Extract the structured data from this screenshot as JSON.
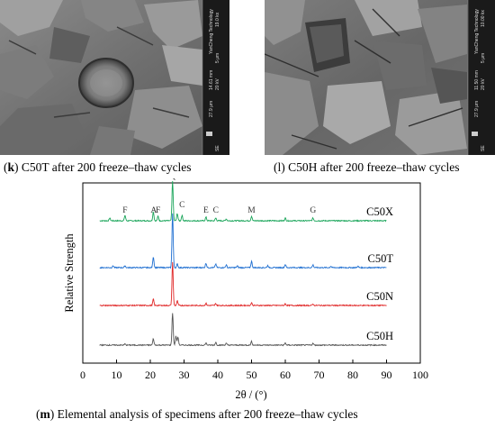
{
  "panels": {
    "k": {
      "letter": "k",
      "caption_rest": " C50T after 200 freeze–thaw cycles",
      "sem_info": [
        "19.0 kx",
        "YanCheng Technology",
        "5 μm",
        "14.61 mm",
        "20 kV",
        "27.9 μm",
        "SE"
      ]
    },
    "l": {
      "letter": "l",
      "caption_rest": " C50H after 200 freeze–thaw cycles",
      "sem_info": [
        "10.00 kx",
        "YanCheng Technology",
        "5 μm",
        "11.50 mm",
        "20 kV",
        "27.9 μm",
        "SE"
      ]
    },
    "m": {
      "letter": "m",
      "caption_rest": " Elemental analysis of specimens after 200 freeze–thaw cycles"
    }
  },
  "chart_data": {
    "type": "line",
    "xlabel": "2θ / (°)",
    "ylabel": "Relative Strength",
    "xlim": [
      0,
      100
    ],
    "xticks": [
      0,
      10,
      20,
      30,
      40,
      50,
      60,
      70,
      80,
      90,
      100
    ],
    "x_range_data": [
      5,
      90
    ],
    "peak_labels": [
      {
        "label": "F",
        "x": 12.5
      },
      {
        "label": "A",
        "x": 21
      },
      {
        "label": "F",
        "x": 22.3
      },
      {
        "label": "Q",
        "x": 26.6
      },
      {
        "label": "C",
        "x": 29.4
      },
      {
        "label": "E",
        "x": 36.5
      },
      {
        "label": "C",
        "x": 39.4
      },
      {
        "label": "M",
        "x": 50
      },
      {
        "label": "G",
        "x": 68.2
      }
    ],
    "series": [
      {
        "name": "C50X",
        "color": "#1aa55a",
        "offset": 0.79,
        "peaks": [
          [
            8,
            0.015
          ],
          [
            12.5,
            0.03
          ],
          [
            20.9,
            0.05
          ],
          [
            22.3,
            0.025
          ],
          [
            26.6,
            0.22
          ],
          [
            28,
            0.04
          ],
          [
            29.4,
            0.03
          ],
          [
            36.5,
            0.02
          ],
          [
            39.4,
            0.015
          ],
          [
            42.5,
            0.01
          ],
          [
            50,
            0.025
          ],
          [
            60,
            0.015
          ],
          [
            68.2,
            0.015
          ]
        ]
      },
      {
        "name": "C50T",
        "color": "#1f6fd1",
        "offset": 0.53,
        "peaks": [
          [
            9,
            0.01
          ],
          [
            12.5,
            0.01
          ],
          [
            20.9,
            0.06
          ],
          [
            26.6,
            0.3
          ],
          [
            28,
            0.02
          ],
          [
            36.5,
            0.025
          ],
          [
            39.4,
            0.02
          ],
          [
            42.5,
            0.015
          ],
          [
            45.8,
            0.01
          ],
          [
            50,
            0.035
          ],
          [
            54.8,
            0.012
          ],
          [
            60,
            0.018
          ],
          [
            68.2,
            0.015
          ],
          [
            73.5,
            0.008
          ],
          [
            81.5,
            0.008
          ]
        ]
      },
      {
        "name": "C50N",
        "color": "#e02727",
        "offset": 0.32,
        "peaks": [
          [
            20.9,
            0.035
          ],
          [
            26.6,
            0.24
          ],
          [
            28,
            0.025
          ],
          [
            36.5,
            0.012
          ],
          [
            39.4,
            0.01
          ],
          [
            50,
            0.015
          ],
          [
            60,
            0.01
          ],
          [
            68.2,
            0.008
          ]
        ]
      },
      {
        "name": "C50H",
        "color": "#555555",
        "offset": 0.1,
        "peaks": [
          [
            12.5,
            0.006
          ],
          [
            20.9,
            0.035
          ],
          [
            26.6,
            0.18
          ],
          [
            27.6,
            0.05
          ],
          [
            28.2,
            0.045
          ],
          [
            36.5,
            0.012
          ],
          [
            39.4,
            0.015
          ],
          [
            42.5,
            0.01
          ],
          [
            50,
            0.02
          ],
          [
            60,
            0.012
          ],
          [
            68.2,
            0.01
          ]
        ]
      }
    ]
  }
}
